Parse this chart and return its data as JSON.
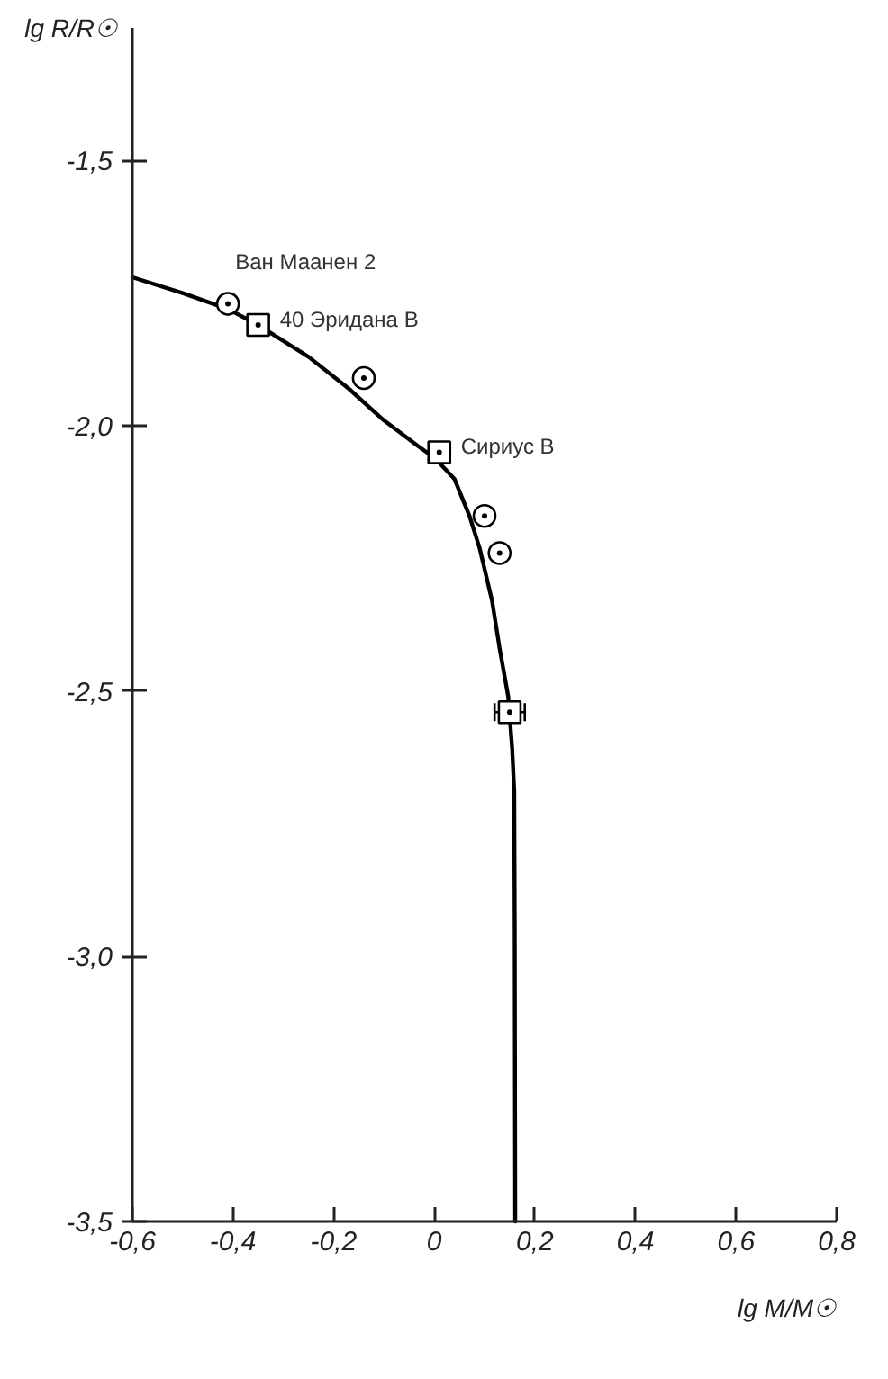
{
  "chart_data": {
    "type": "scatter",
    "xlabel": "lg M/M☉",
    "ylabel": "lg R/R☉",
    "xlim": [
      -0.6,
      0.8
    ],
    "ylim": [
      -3.5,
      -1.25
    ],
    "xticks": [
      {
        "value": -0.6,
        "label": "-0,6"
      },
      {
        "value": -0.4,
        "label": "-0,4"
      },
      {
        "value": -0.2,
        "label": "-0,2"
      },
      0,
      {
        "value": 0.2,
        "label": "0,2"
      },
      {
        "value": 0.4,
        "label": "0,4"
      },
      {
        "value": 0.6,
        "label": "0,6"
      },
      {
        "value": 0.8,
        "label": "0,8"
      }
    ],
    "yticks": [
      {
        "value": -3.5,
        "label": "-3,5"
      },
      {
        "value": -3.0,
        "label": "-3,0"
      },
      {
        "value": -2.5,
        "label": "-2,5"
      },
      {
        "value": -2.0,
        "label": "-2,0"
      },
      {
        "value": -1.5,
        "label": "-1,5"
      }
    ],
    "series": [
      {
        "type": "line",
        "color": "#000000",
        "marker": "none",
        "x": [
          -0.6,
          -0.5,
          -0.41,
          -0.35,
          -0.25,
          -0.17,
          -0.1,
          -0.03,
          0.0,
          0.04,
          0.07,
          0.09,
          0.115,
          0.13,
          0.147,
          0.155,
          0.159,
          0.16,
          0.161
        ],
        "values": [
          -1.72,
          -1.75,
          -1.78,
          -1.81,
          -1.87,
          -1.93,
          -1.99,
          -2.04,
          -2.06,
          -2.1,
          -2.17,
          -2.23,
          -2.33,
          -2.42,
          -2.51,
          -2.61,
          -2.69,
          -2.95,
          -3.5
        ]
      },
      {
        "color": "#000000",
        "marker": "circle",
        "x": [
          -0.41,
          -0.14,
          0.1,
          0.13
        ],
        "values": [
          -1.77,
          -1.91,
          -2.17,
          -2.24
        ]
      },
      {
        "color": "#000000",
        "marker": "square",
        "x": [
          -0.35,
          0.01,
          0.15
        ],
        "values": [
          -1.81,
          -2.05,
          -2.54
        ],
        "xerrors": [
          null,
          null,
          0.03
        ]
      }
    ],
    "annotations": [
      {
        "text": "Ван Маанен 2",
        "x": -0.41,
        "y": -1.77
      },
      {
        "text": "40 Эридана В",
        "x": -0.35,
        "y": -1.81
      },
      {
        "text": "Сириус В",
        "x": 0.01,
        "y": -2.05
      }
    ],
    "grid": false
  }
}
